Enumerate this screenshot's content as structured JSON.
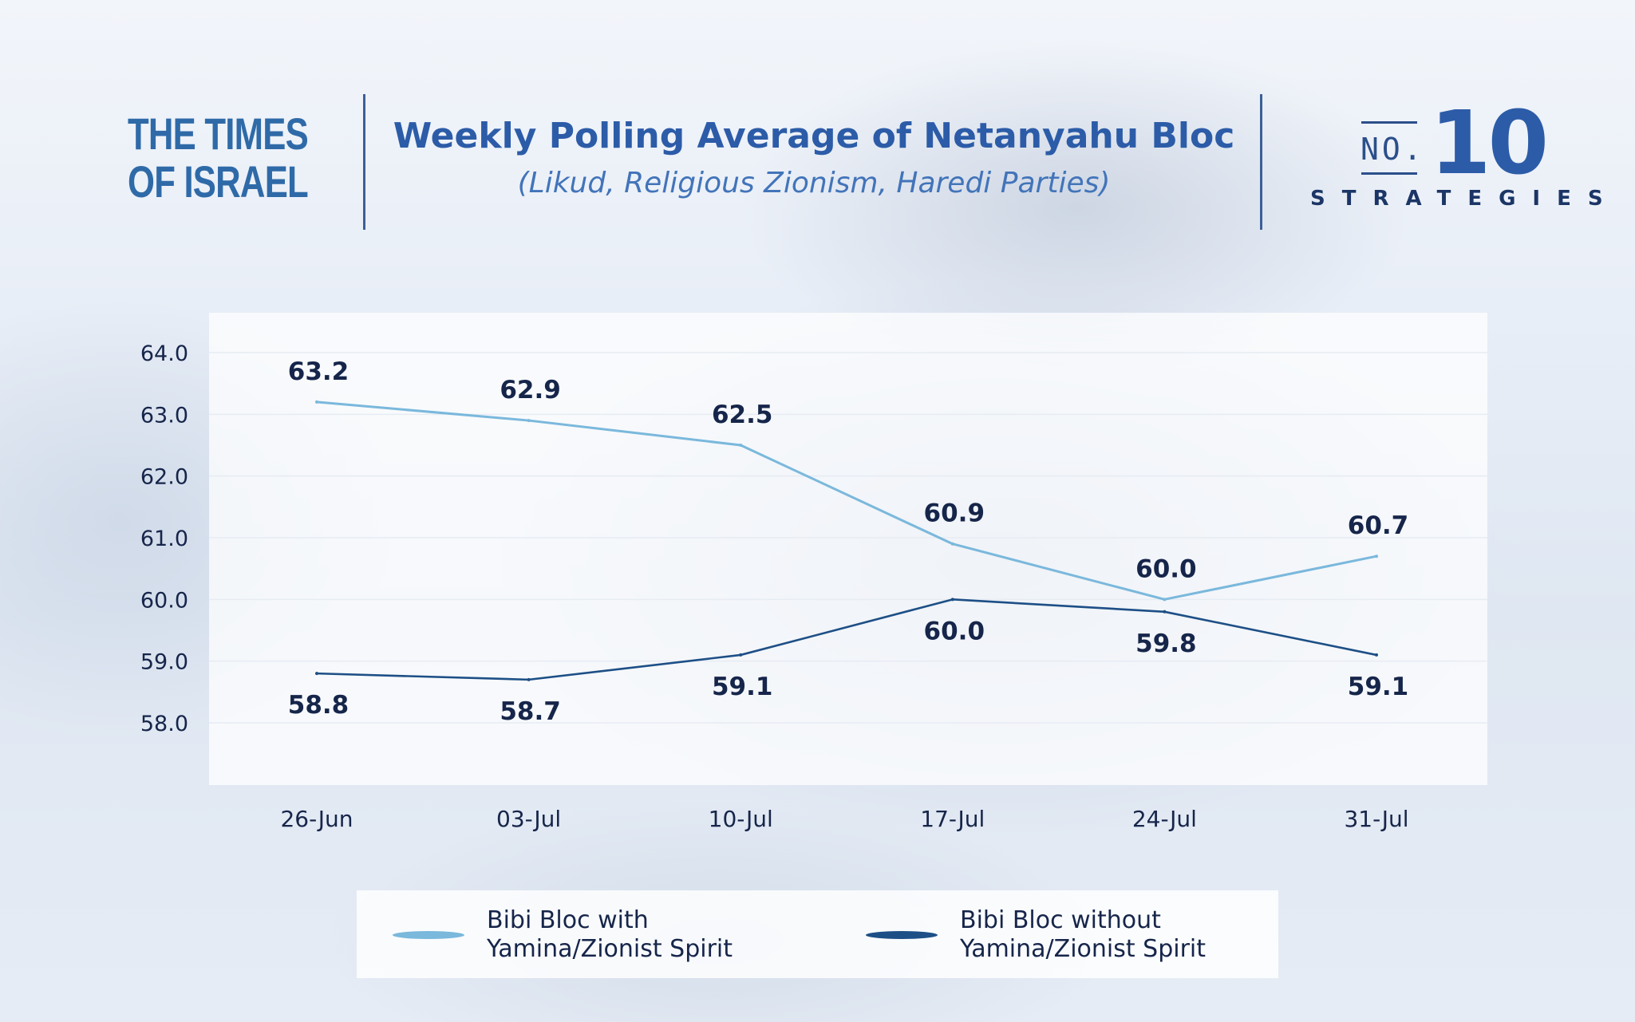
{
  "header": {
    "publisher_line1": "THE TIMES",
    "publisher_line2": "OF ISRAEL",
    "title": "Weekly Polling Average of Netanyahu Bloc",
    "subtitle": "(Likud, Religious Zionism, Haredi Parties)",
    "brand_no": "NO.",
    "brand_number": "10",
    "brand_name": "STRATEGIES"
  },
  "legend": {
    "series_1_label": "Bibi Bloc with\nYamina/Zionist Spirit",
    "series_2_label": "Bibi Bloc without\nYamina/Zionist Spirit"
  },
  "chart_data": {
    "type": "line",
    "title": "Weekly Polling Average of Netanyahu Bloc",
    "subtitle": "(Likud, Religious Zionism, Haredi Parties)",
    "categories": [
      "26-Jun",
      "03-Jul",
      "10-Jul",
      "17-Jul",
      "24-Jul",
      "31-Jul"
    ],
    "y_ticks": [
      "64.0",
      "63.0",
      "62.0",
      "61.0",
      "60.0",
      "59.0",
      "58.0"
    ],
    "ylim": [
      58.0,
      64.0
    ],
    "grid": true,
    "legend_position": "bottom",
    "series": [
      {
        "name": "Bibi Bloc with Yamina/Zionist Spirit",
        "color": "#7ab8dc",
        "values": [
          63.2,
          62.9,
          62.5,
          60.9,
          60.0,
          60.7
        ],
        "labels": [
          "63.2",
          "62.9",
          "62.5",
          "60.9",
          "60.0",
          "60.7"
        ],
        "label_position": "above"
      },
      {
        "name": "Bibi Bloc without Yamina/Zionist Spirit",
        "color": "#1d4f86",
        "values": [
          58.8,
          58.7,
          59.1,
          60.0,
          59.8,
          59.1
        ],
        "labels": [
          "58.8",
          "58.7",
          "59.1",
          "60.0",
          "59.8",
          "59.1"
        ],
        "label_position": "below"
      }
    ]
  }
}
